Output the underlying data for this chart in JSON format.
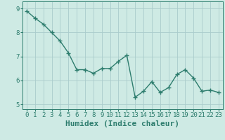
{
  "x": [
    0,
    1,
    2,
    3,
    4,
    5,
    6,
    7,
    8,
    9,
    10,
    11,
    12,
    13,
    14,
    15,
    16,
    17,
    18,
    19,
    20,
    21,
    22,
    23
  ],
  "y": [
    8.9,
    8.6,
    8.35,
    8.0,
    7.65,
    7.15,
    6.45,
    6.45,
    6.3,
    6.5,
    6.5,
    6.8,
    7.05,
    5.3,
    5.55,
    5.95,
    5.5,
    5.7,
    6.25,
    6.45,
    6.1,
    5.55,
    5.6,
    5.5
  ],
  "line_color": "#2e7d6e",
  "marker": "+",
  "marker_size": 4,
  "marker_edge_width": 1.0,
  "bg_color": "#ceeae4",
  "grid_color": "#aacccc",
  "xlabel": "Humidex (Indice chaleur)",
  "xlabel_fontsize": 8,
  "xlim": [
    -0.5,
    23.5
  ],
  "ylim": [
    4.8,
    9.3
  ],
  "yticks": [
    5,
    6,
    7,
    8,
    9
  ],
  "xticks": [
    0,
    1,
    2,
    3,
    4,
    5,
    6,
    7,
    8,
    9,
    10,
    11,
    12,
    13,
    14,
    15,
    16,
    17,
    18,
    19,
    20,
    21,
    22,
    23
  ],
  "tick_fontsize": 6.5,
  "line_width": 1.0
}
